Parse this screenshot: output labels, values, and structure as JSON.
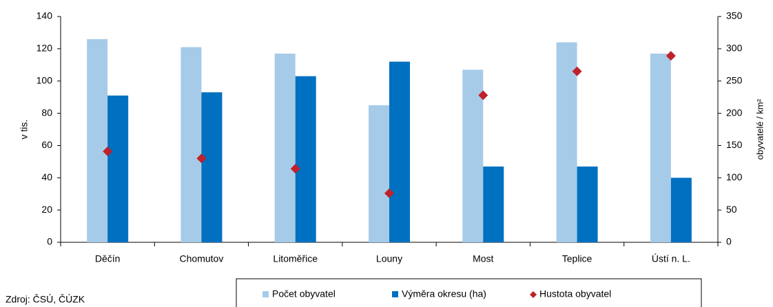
{
  "chart_data": {
    "type": "bar",
    "categories": [
      "Děčín",
      "Chomutov",
      "Litoměřice",
      "Louny",
      "Most",
      "Teplice",
      "Ústí n. L."
    ],
    "series": [
      {
        "name": "Počet obyvatel",
        "type": "bar",
        "color": "#a6cbe8",
        "values": [
          126,
          121,
          117,
          85,
          107,
          124,
          117
        ]
      },
      {
        "name": "Výměra okresu (ha)",
        "type": "bar",
        "color": "#0070c0",
        "values": [
          91,
          93,
          103,
          112,
          47,
          47,
          40
        ]
      },
      {
        "name": "Hustota obyvatel",
        "type": "scatter",
        "axis": "y2",
        "color": "#c0212a",
        "values": [
          141,
          130,
          114,
          76,
          228,
          265,
          289
        ]
      }
    ],
    "ylabel": "v tis.",
    "y2label": "obyvatelé / km²",
    "ylim": [
      0,
      140
    ],
    "yticks": [
      0,
      20,
      40,
      60,
      80,
      100,
      120,
      140
    ],
    "y2lim": [
      0,
      350
    ],
    "y2ticks": [
      0,
      50,
      100,
      150,
      200,
      250,
      300,
      350
    ],
    "grid": false,
    "legend": "bottom",
    "source": "Zdroj: ČSÚ, ČÚZK"
  }
}
